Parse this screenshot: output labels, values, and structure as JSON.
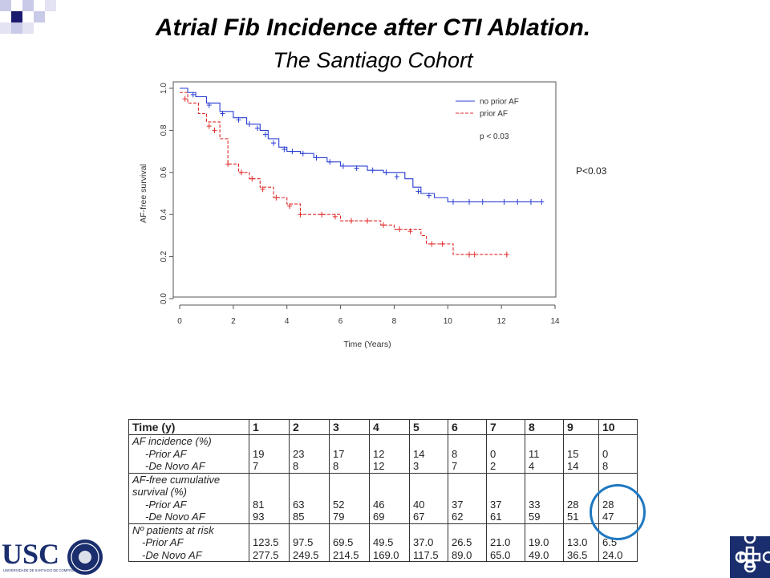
{
  "header": {
    "title": "Atrial Fib Incidence after CTI Ablation.",
    "subtitle": "The Santiago Cohort"
  },
  "side_p_value": "P<0.03",
  "chart_data": {
    "type": "line",
    "subtype": "kaplan-meier",
    "xlabel": "Time (Years)",
    "ylabel": "AF-free survival",
    "xlim": [
      0,
      14
    ],
    "ylim": [
      0,
      1.0
    ],
    "x_ticks": [
      0,
      2,
      4,
      6,
      8,
      10,
      12,
      14
    ],
    "y_ticks": [
      0.0,
      0.2,
      0.4,
      0.6,
      0.8,
      1.0
    ],
    "grid": false,
    "legend_position": "top-right",
    "annotation": "p < 0.03",
    "series": [
      {
        "name": "no prior AF",
        "color": "#2a3fd4",
        "dash": "solid",
        "points": [
          [
            0,
            1.0
          ],
          [
            0.3,
            0.98
          ],
          [
            0.6,
            0.96
          ],
          [
            1.0,
            0.93
          ],
          [
            1.5,
            0.89
          ],
          [
            2.0,
            0.86
          ],
          [
            2.5,
            0.83
          ],
          [
            3.0,
            0.8
          ],
          [
            3.3,
            0.76
          ],
          [
            3.7,
            0.72
          ],
          [
            4.0,
            0.7
          ],
          [
            4.5,
            0.69
          ],
          [
            5.0,
            0.67
          ],
          [
            5.5,
            0.65
          ],
          [
            6.0,
            0.63
          ],
          [
            7.0,
            0.61
          ],
          [
            7.6,
            0.6
          ],
          [
            8.4,
            0.57
          ],
          [
            8.7,
            0.53
          ],
          [
            9.0,
            0.5
          ],
          [
            9.5,
            0.48
          ],
          [
            10.0,
            0.46
          ],
          [
            12.0,
            0.46
          ],
          [
            13.5,
            0.46
          ]
        ],
        "censor_marks": [
          [
            0.5,
            0.97
          ],
          [
            1.1,
            0.92
          ],
          [
            1.6,
            0.88
          ],
          [
            2.2,
            0.85
          ],
          [
            2.6,
            0.83
          ],
          [
            2.9,
            0.81
          ],
          [
            3.2,
            0.78
          ],
          [
            3.5,
            0.74
          ],
          [
            3.9,
            0.71
          ],
          [
            4.2,
            0.7
          ],
          [
            4.6,
            0.69
          ],
          [
            5.1,
            0.67
          ],
          [
            5.6,
            0.65
          ],
          [
            6.1,
            0.63
          ],
          [
            6.6,
            0.62
          ],
          [
            7.2,
            0.61
          ],
          [
            7.7,
            0.6
          ],
          [
            8.1,
            0.58
          ],
          [
            8.9,
            0.51
          ],
          [
            9.3,
            0.49
          ],
          [
            10.2,
            0.46
          ],
          [
            10.8,
            0.46
          ],
          [
            11.3,
            0.46
          ],
          [
            12.1,
            0.46
          ],
          [
            12.6,
            0.46
          ],
          [
            13.1,
            0.46
          ],
          [
            13.5,
            0.46
          ]
        ]
      },
      {
        "name": "prior AF",
        "color": "#e02a2a",
        "dash": "dashed",
        "points": [
          [
            0,
            0.98
          ],
          [
            0.3,
            0.93
          ],
          [
            0.7,
            0.88
          ],
          [
            1.0,
            0.84
          ],
          [
            1.5,
            0.76
          ],
          [
            1.8,
            0.64
          ],
          [
            2.2,
            0.6
          ],
          [
            2.6,
            0.57
          ],
          [
            3.0,
            0.53
          ],
          [
            3.5,
            0.48
          ],
          [
            4.0,
            0.45
          ],
          [
            4.5,
            0.4
          ],
          [
            5.0,
            0.4
          ],
          [
            6.0,
            0.37
          ],
          [
            7.0,
            0.37
          ],
          [
            7.5,
            0.35
          ],
          [
            8.0,
            0.33
          ],
          [
            9.0,
            0.3
          ],
          [
            9.2,
            0.26
          ],
          [
            10.0,
            0.26
          ],
          [
            10.2,
            0.21
          ],
          [
            12.2,
            0.21
          ]
        ],
        "censor_marks": [
          [
            0.2,
            0.95
          ],
          [
            1.1,
            0.82
          ],
          [
            1.3,
            0.8
          ],
          [
            1.8,
            0.64
          ],
          [
            2.3,
            0.6
          ],
          [
            2.7,
            0.57
          ],
          [
            3.1,
            0.52
          ],
          [
            3.6,
            0.48
          ],
          [
            4.1,
            0.44
          ],
          [
            4.5,
            0.4
          ],
          [
            5.3,
            0.4
          ],
          [
            5.8,
            0.39
          ],
          [
            6.4,
            0.37
          ],
          [
            7.0,
            0.37
          ],
          [
            7.6,
            0.35
          ],
          [
            8.2,
            0.33
          ],
          [
            8.6,
            0.32
          ],
          [
            9.4,
            0.26
          ],
          [
            9.8,
            0.26
          ],
          [
            10.8,
            0.21
          ],
          [
            11.0,
            0.21
          ],
          [
            12.2,
            0.21
          ]
        ]
      }
    ]
  },
  "table": {
    "header": [
      "Time (y)",
      "1",
      "2",
      "3",
      "4",
      "5",
      "6",
      "7",
      "8",
      "9",
      "10"
    ],
    "sections": [
      {
        "title": [
          "AF incidence (%)"
        ],
        "rows": [
          {
            "label": "-Prior AF",
            "values": [
              "19",
              "23",
              "17",
              "12",
              "14",
              "8",
              "0",
              "11",
              "15",
              "0"
            ]
          },
          {
            "label": "-De Novo AF",
            "values": [
              "7",
              "8",
              "8",
              "12",
              "3",
              "7",
              "2",
              "4",
              "14",
              "8"
            ]
          }
        ]
      },
      {
        "title": [
          "AF-free cumulative",
          "survival (%)"
        ],
        "rows": [
          {
            "label": "-Prior AF",
            "values": [
              "81",
              "63",
              "52",
              "46",
              "40",
              "37",
              "37",
              "33",
              "28",
              "28"
            ]
          },
          {
            "label": "-De Novo AF",
            "values": [
              "93",
              "85",
              "79",
              "69",
              "67",
              "62",
              "61",
              "59",
              "51",
              "47"
            ]
          }
        ]
      },
      {
        "title": [
          "Nº patients at risk"
        ],
        "rows": [
          {
            "label": "-Prior AF",
            "values": [
              "123.5",
              "97.5",
              "69.5",
              "49.5",
              "37.0",
              "26.5",
              "21.0",
              "19.0",
              "13.0",
              "6.5"
            ]
          },
          {
            "label": "-De Novo AF",
            "values": [
              "277.5",
              "249.5",
              "214.5",
              "169.0",
              "117.5",
              "89.0",
              "65.0",
              "49.0",
              "36.5",
              "24.0"
            ]
          }
        ]
      }
    ]
  },
  "logos": {
    "left_text": "USC",
    "left_subtext": "UNIVERSIDADE DE SANTIAGO DE COMPOSTELA"
  }
}
